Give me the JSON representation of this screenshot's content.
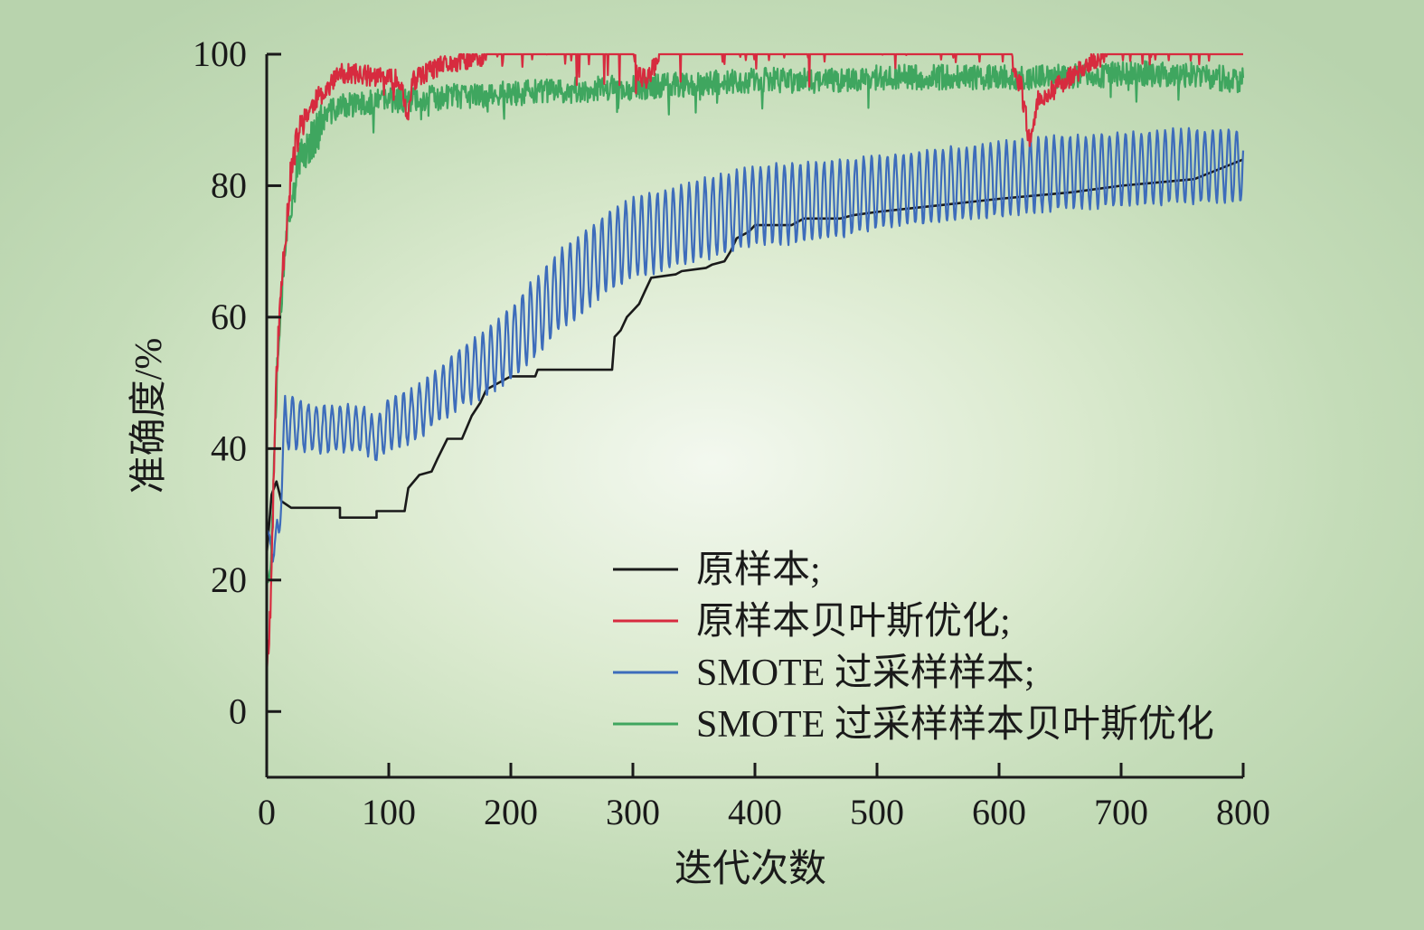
{
  "chart_data": {
    "type": "line",
    "title": "",
    "xlabel": "迭代次数",
    "ylabel": "准确度/%",
    "xlim": [
      0,
      800
    ],
    "ylim": [
      -10,
      100
    ],
    "xticks": [
      0,
      100,
      200,
      300,
      400,
      500,
      600,
      700,
      800
    ],
    "yticks": [
      0,
      20,
      40,
      60,
      80,
      100
    ],
    "grid": false,
    "legend_position": "lower-right",
    "series": [
      {
        "name": "原样本;",
        "color": "#1a1a1a",
        "style": "step",
        "points": [
          [
            0,
            24
          ],
          [
            4,
            33
          ],
          [
            8,
            35
          ],
          [
            12,
            32
          ],
          [
            20,
            31
          ],
          [
            60,
            31
          ],
          [
            60,
            29.5
          ],
          [
            90,
            29.5
          ],
          [
            90,
            30.5
          ],
          [
            113,
            30.5
          ],
          [
            116,
            34
          ],
          [
            125,
            36
          ],
          [
            135,
            36.5
          ],
          [
            140,
            38.5
          ],
          [
            148,
            41.5
          ],
          [
            160,
            41.5
          ],
          [
            168,
            45
          ],
          [
            175,
            47
          ],
          [
            180,
            49
          ],
          [
            190,
            50
          ],
          [
            200,
            51
          ],
          [
            220,
            51
          ],
          [
            222,
            52
          ],
          [
            283,
            52
          ],
          [
            285,
            57
          ],
          [
            290,
            58
          ],
          [
            295,
            60
          ],
          [
            305,
            62
          ],
          [
            310,
            64
          ],
          [
            315,
            66
          ],
          [
            335,
            66.5
          ],
          [
            340,
            67
          ],
          [
            360,
            67.5
          ],
          [
            365,
            68
          ],
          [
            375,
            68.5
          ],
          [
            380,
            70
          ],
          [
            385,
            72
          ],
          [
            395,
            73
          ],
          [
            400,
            74
          ],
          [
            430,
            74
          ],
          [
            440,
            75
          ],
          [
            470,
            75
          ],
          [
            480,
            75.5
          ],
          [
            500,
            76
          ],
          [
            550,
            77
          ],
          [
            600,
            78
          ],
          [
            660,
            79
          ],
          [
            700,
            80
          ],
          [
            760,
            81
          ],
          [
            800,
            84
          ]
        ]
      },
      {
        "name": "原样本贝叶斯优化;",
        "color": "#d72b3f",
        "style": "noisy",
        "noise": 1.2,
        "seed": 11,
        "points": [
          [
            0,
            7
          ],
          [
            3,
            15
          ],
          [
            5,
            30
          ],
          [
            7,
            45
          ],
          [
            9,
            55
          ],
          [
            12,
            65
          ],
          [
            15,
            72
          ],
          [
            20,
            82
          ],
          [
            25,
            87
          ],
          [
            30,
            90
          ],
          [
            40,
            93
          ],
          [
            50,
            95
          ],
          [
            60,
            97
          ],
          [
            75,
            97
          ],
          [
            90,
            96.5
          ],
          [
            110,
            96
          ],
          [
            115,
            90
          ],
          [
            120,
            96
          ],
          [
            140,
            98
          ],
          [
            160,
            99
          ],
          [
            180,
            99.5
          ],
          [
            200,
            99.5
          ],
          [
            220,
            99.5
          ],
          [
            230,
            100
          ],
          [
            300,
            100
          ],
          [
            305,
            97
          ],
          [
            310,
            96
          ],
          [
            318,
            98.5
          ],
          [
            325,
            100
          ],
          [
            610,
            100
          ],
          [
            614,
            97
          ],
          [
            618,
            95
          ],
          [
            622,
            90
          ],
          [
            625,
            86
          ],
          [
            628,
            90
          ],
          [
            632,
            93
          ],
          [
            640,
            94
          ],
          [
            655,
            96
          ],
          [
            670,
            98
          ],
          [
            690,
            100
          ],
          [
            800,
            100
          ]
        ]
      },
      {
        "name": "SMOTE 过采样样本;",
        "color": "#3d6cbb",
        "style": "oscillating",
        "period": 6.5,
        "seed": 23,
        "points": [
          [
            0,
            28,
            0
          ],
          [
            5,
            24,
            1
          ],
          [
            10,
            28,
            3
          ],
          [
            15,
            44,
            4
          ],
          [
            20,
            44,
            4
          ],
          [
            40,
            43,
            3.5
          ],
          [
            60,
            43,
            3.5
          ],
          [
            80,
            43,
            3.5
          ],
          [
            90,
            41,
            3
          ],
          [
            100,
            44,
            4
          ],
          [
            120,
            45,
            4
          ],
          [
            140,
            48,
            4
          ],
          [
            160,
            51,
            4.5
          ],
          [
            180,
            53,
            5
          ],
          [
            200,
            56,
            5.5
          ],
          [
            220,
            60,
            6
          ],
          [
            240,
            64,
            6
          ],
          [
            260,
            67,
            6
          ],
          [
            280,
            70,
            6
          ],
          [
            300,
            72,
            6
          ],
          [
            320,
            73,
            6
          ],
          [
            340,
            74,
            6
          ],
          [
            360,
            75,
            6
          ],
          [
            380,
            76,
            6
          ],
          [
            400,
            77,
            6
          ],
          [
            450,
            77.5,
            6
          ],
          [
            500,
            79,
            5.5
          ],
          [
            550,
            80,
            5.5
          ],
          [
            600,
            81,
            5.5
          ],
          [
            650,
            82,
            5.5
          ],
          [
            700,
            82.5,
            5.5
          ],
          [
            750,
            83,
            5.5
          ],
          [
            800,
            83,
            5.5
          ]
        ]
      },
      {
        "name": "SMOTE 过采样样本贝叶斯优化",
        "color": "#3fa65f",
        "style": "noisy",
        "noise": 1.5,
        "seed": 37,
        "points": [
          [
            0,
            24
          ],
          [
            3,
            20
          ],
          [
            6,
            40
          ],
          [
            9,
            55
          ],
          [
            12,
            62
          ],
          [
            15,
            72
          ],
          [
            20,
            78
          ],
          [
            25,
            82
          ],
          [
            30,
            85
          ],
          [
            40,
            88
          ],
          [
            50,
            91
          ],
          [
            60,
            92
          ],
          [
            80,
            92.5
          ],
          [
            100,
            93
          ],
          [
            150,
            93.5
          ],
          [
            200,
            94
          ],
          [
            250,
            94.5
          ],
          [
            300,
            95
          ],
          [
            350,
            95.5
          ],
          [
            400,
            96
          ],
          [
            450,
            96
          ],
          [
            500,
            96.5
          ],
          [
            550,
            96.5
          ],
          [
            600,
            96.5
          ],
          [
            650,
            96.5
          ],
          [
            700,
            97
          ],
          [
            750,
            97
          ],
          [
            800,
            96
          ]
        ]
      }
    ]
  }
}
